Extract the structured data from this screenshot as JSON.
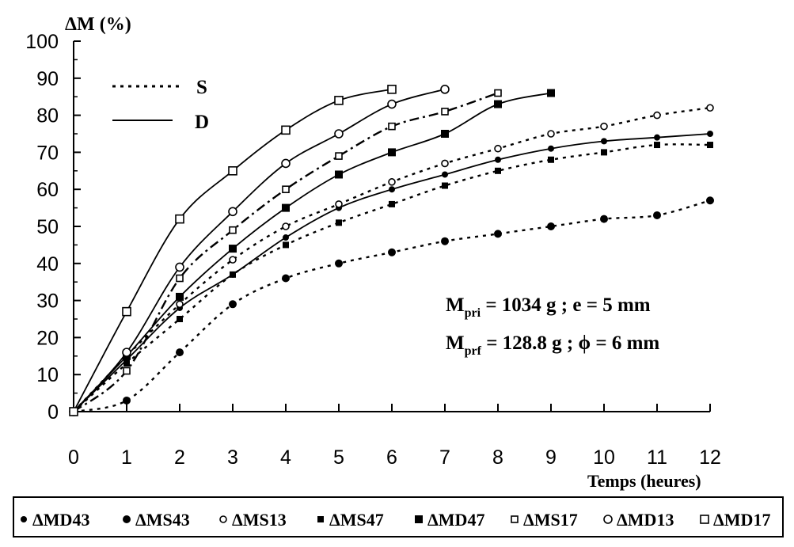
{
  "chart_data": {
    "type": "line",
    "ylabel": "ΔM (%)",
    "xlabel": "Temps (heures)",
    "xlim": [
      0,
      12
    ],
    "ylim": [
      0,
      100
    ],
    "xticks": [
      "0",
      "1",
      "2",
      "3",
      "4",
      "5",
      "6",
      "7",
      "8",
      "9",
      "10",
      "11",
      "12"
    ],
    "yticks": [
      "0",
      "10",
      "20",
      "30",
      "40",
      "50",
      "60",
      "70",
      "80",
      "90",
      "100"
    ],
    "grid": false,
    "style_legend": [
      {
        "label": "S",
        "line_style": "dotted"
      },
      {
        "label": "D",
        "line_style": "solid"
      }
    ],
    "annotations": {
      "line1": {
        "m": "M",
        "sub": "pri",
        "rest": " = 1034 g ; e = 5 mm"
      },
      "line2": {
        "m": "M",
        "sub": "prf",
        "rest": " = 128.8 g ; ϕ = 6 mm"
      }
    },
    "series": [
      {
        "name": "ΔMD43",
        "marker": "filled-circle-small",
        "line_style": "solid",
        "x": [
          0,
          1,
          2,
          3,
          4,
          5,
          6,
          7,
          8,
          9,
          10,
          11,
          12
        ],
        "y": [
          0,
          14,
          28,
          37,
          47,
          55,
          60,
          64,
          68,
          71,
          73,
          74,
          75
        ]
      },
      {
        "name": "ΔMS43",
        "marker": "filled-circle",
        "line_style": "dotted",
        "x": [
          0,
          1,
          2,
          3,
          4,
          5,
          6,
          7,
          8,
          9,
          10,
          11,
          12
        ],
        "y": [
          0,
          3,
          16,
          29,
          36,
          40,
          43,
          46,
          48,
          50,
          52,
          53,
          57
        ]
      },
      {
        "name": "ΔMS13",
        "marker": "open-circle-small",
        "line_style": "dotted",
        "x": [
          0,
          1,
          2,
          3,
          4,
          5,
          6,
          7,
          8,
          9,
          10,
          11,
          12
        ],
        "y": [
          0,
          15,
          29,
          41,
          50,
          56,
          62,
          67,
          71,
          75,
          77,
          80,
          82
        ]
      },
      {
        "name": "ΔMS47",
        "marker": "filled-square-small",
        "line_style": "dotted",
        "x": [
          0,
          1,
          2,
          3,
          4,
          5,
          6,
          7,
          8,
          9,
          10,
          11,
          12
        ],
        "y": [
          0,
          13,
          25,
          37,
          45,
          51,
          56,
          61,
          65,
          68,
          70,
          72,
          72
        ]
      },
      {
        "name": "ΔMD47",
        "marker": "filled-square",
        "line_style": "solid",
        "x": [
          0,
          1,
          2,
          3,
          4,
          5,
          6,
          7,
          8,
          9
        ],
        "y": [
          0,
          15,
          31,
          44,
          55,
          64,
          70,
          75,
          83,
          86
        ]
      },
      {
        "name": "ΔMS17",
        "marker": "open-square-small",
        "line_style": "dashdot",
        "x": [
          0,
          1,
          2,
          3,
          4,
          5,
          6,
          7,
          8
        ],
        "y": [
          0,
          11,
          36,
          49,
          60,
          69,
          77,
          81,
          86
        ]
      },
      {
        "name": "ΔMD13",
        "marker": "open-circle",
        "line_style": "solid",
        "x": [
          0,
          1,
          2,
          3,
          4,
          5,
          6,
          7
        ],
        "y": [
          0,
          16,
          39,
          54,
          67,
          75,
          83,
          87
        ]
      },
      {
        "name": "ΔMD17",
        "marker": "open-square",
        "line_style": "solid",
        "x": [
          0,
          1,
          2,
          3,
          4,
          5,
          6
        ],
        "y": [
          0,
          27,
          52,
          65,
          76,
          84,
          87
        ]
      }
    ]
  }
}
